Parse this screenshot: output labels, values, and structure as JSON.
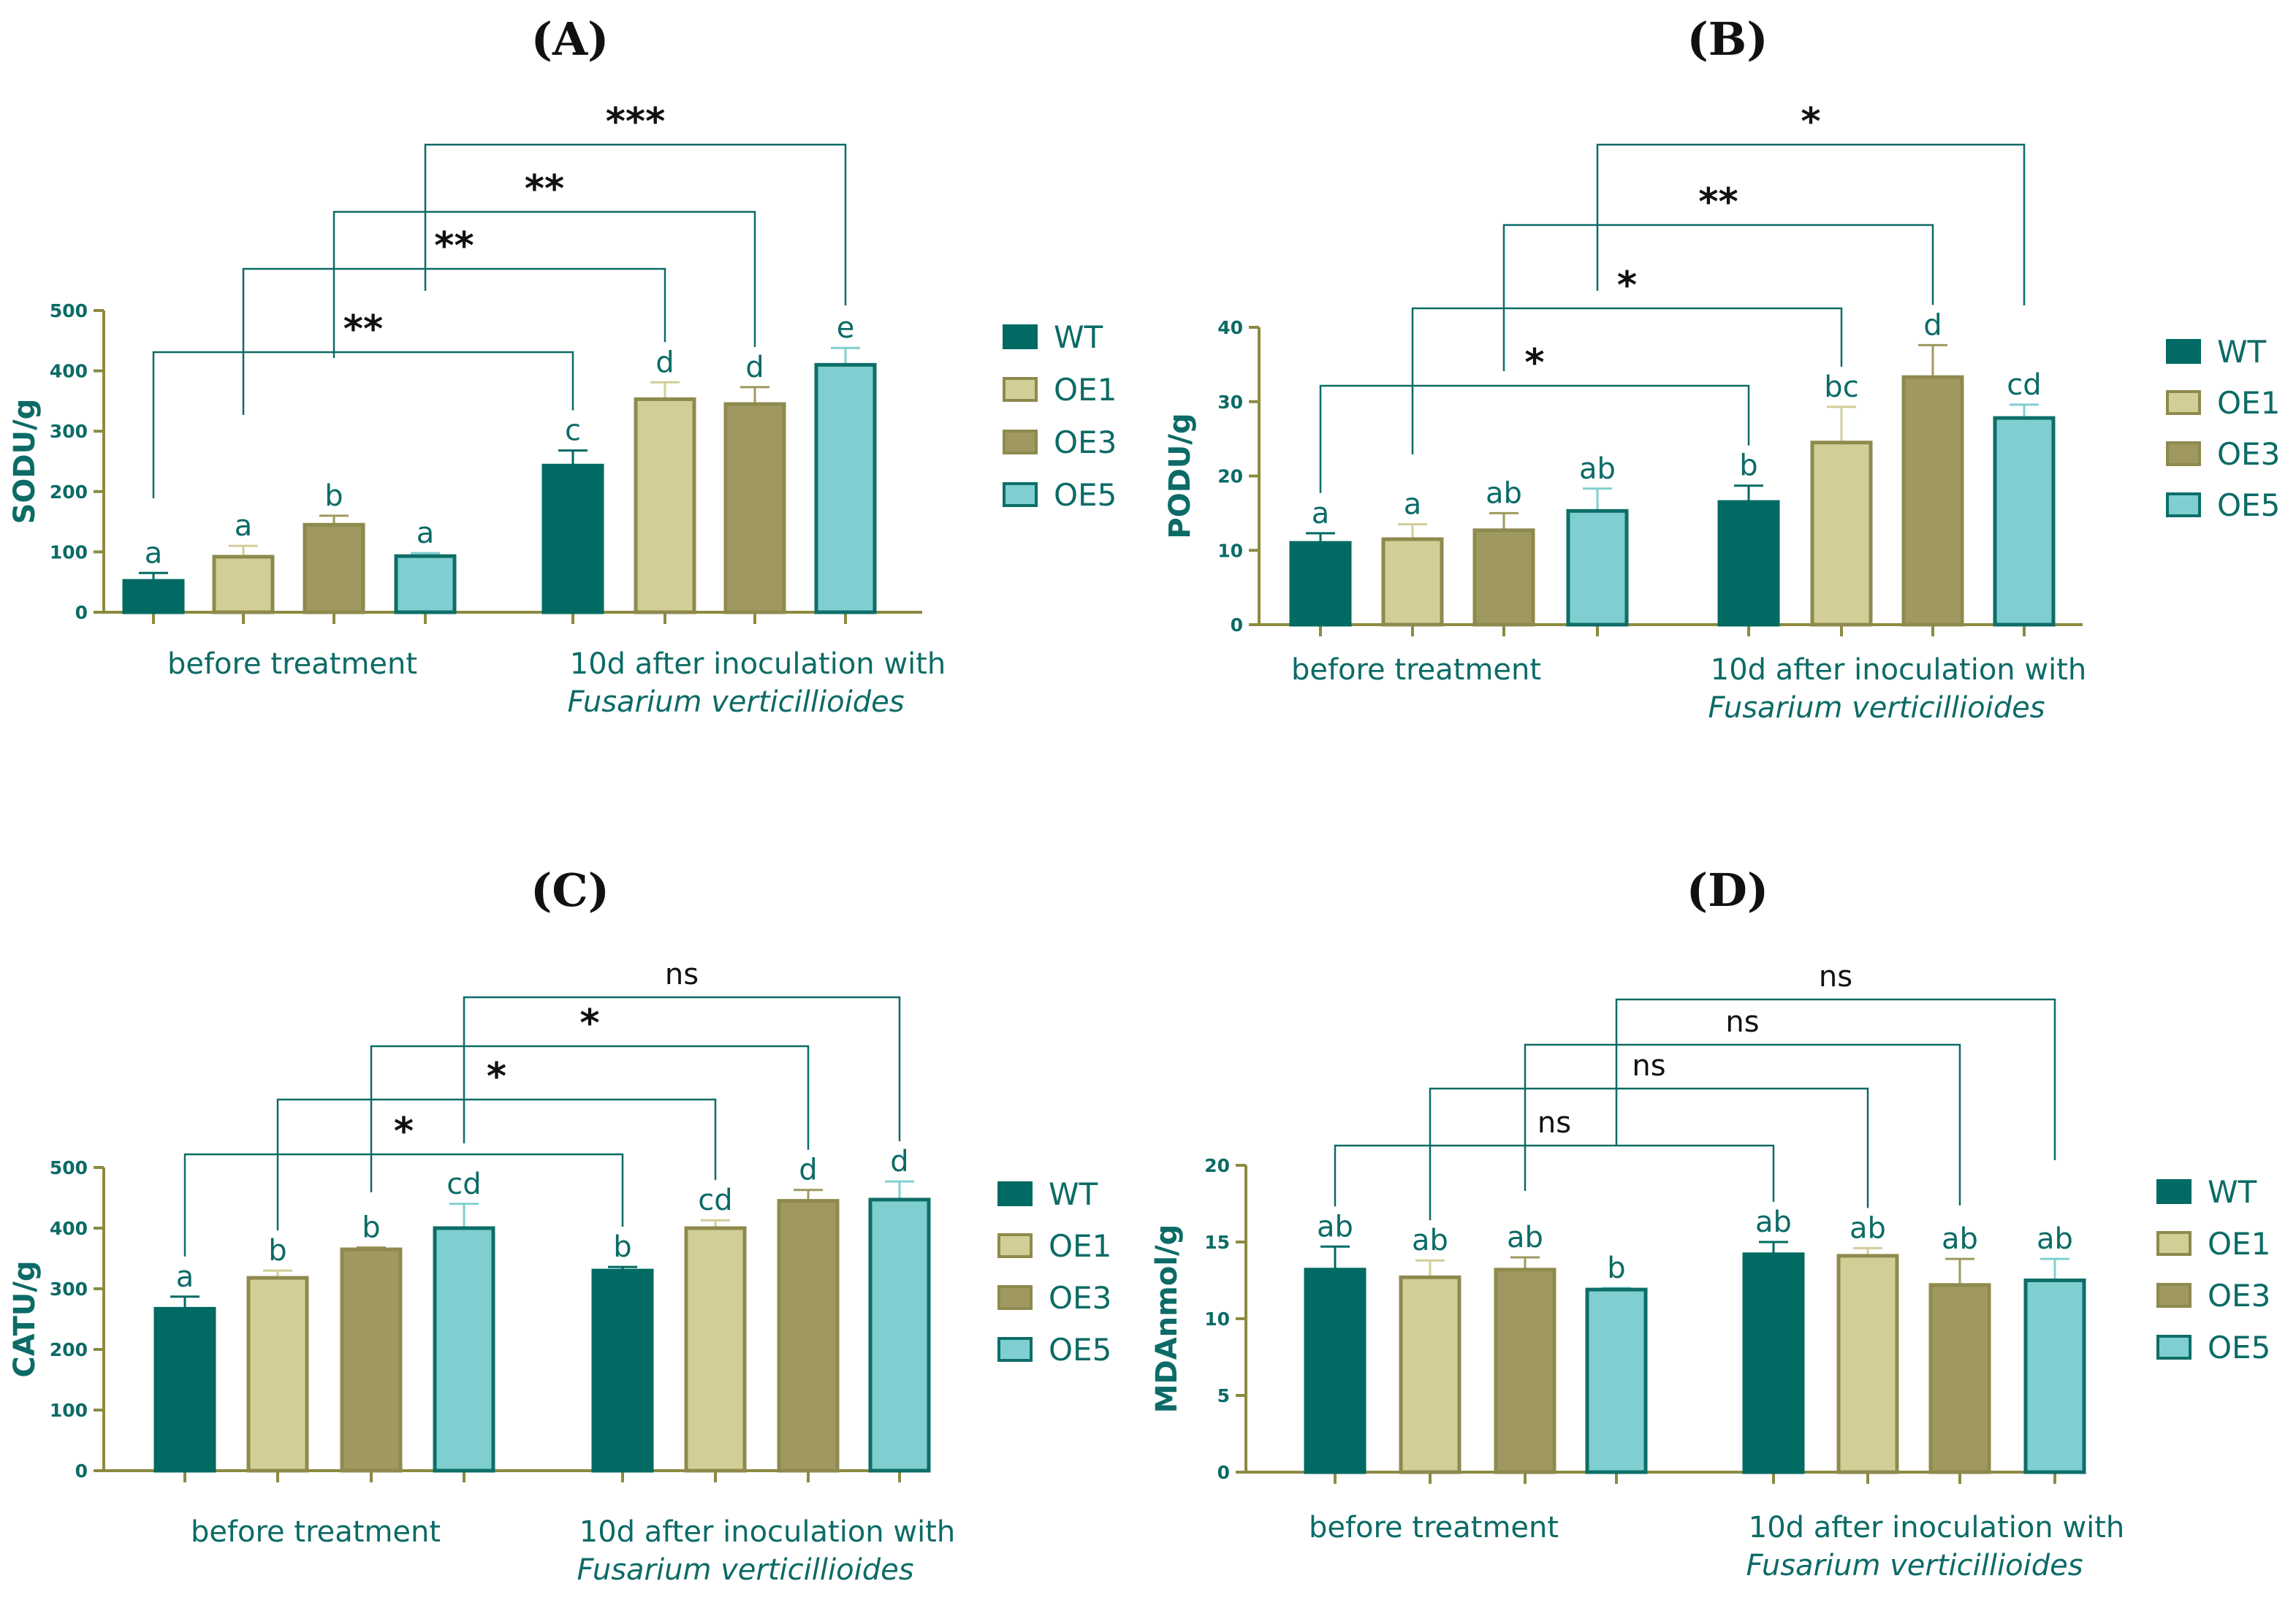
{
  "colors": {
    "WT": "#006a63",
    "OE1": "#d1ce97",
    "OE3": "#9f9860",
    "OE5": "#80cfd0",
    "axis": "#8c8a40",
    "bracket": "#0c6b66",
    "text": "#0c6b66"
  },
  "legend": [
    "WT",
    "OE1",
    "OE3",
    "OE5"
  ],
  "chart_data": [
    {
      "type": "bar",
      "panel": "(A)",
      "ylabel": "SODU/g",
      "ylim": [
        0,
        500
      ],
      "yticks": [
        0,
        100,
        200,
        300,
        400,
        500
      ],
      "groups": [
        {
          "label": "before treatment",
          "label_italic": ""
        },
        {
          "label": "10d after inoculation with",
          "label_italic": "Fusarium verticillioides"
        }
      ],
      "series": [
        {
          "name": "WT",
          "values": [
            52,
            243
          ],
          "errors": [
            13,
            25
          ],
          "letters": [
            "a",
            "c"
          ]
        },
        {
          "name": "OE1",
          "values": [
            92,
            353
          ],
          "errors": [
            18,
            28
          ],
          "letters": [
            "a",
            "d"
          ]
        },
        {
          "name": "OE3",
          "values": [
            145,
            345
          ],
          "errors": [
            15,
            28
          ],
          "letters": [
            "b",
            "d"
          ]
        },
        {
          "name": "OE5",
          "values": [
            93,
            410
          ],
          "errors": [
            5,
            28
          ],
          "letters": [
            "a",
            "e"
          ]
        }
      ],
      "comparisons": [
        {
          "series": "WT",
          "label": "**",
          "level": 0
        },
        {
          "series": "OE1",
          "label": "**",
          "level": 1
        },
        {
          "series": "OE3",
          "label": "**",
          "level": 2
        },
        {
          "series": "OE5",
          "label": "***",
          "level": 3
        }
      ]
    },
    {
      "type": "bar",
      "panel": "(B)",
      "ylabel": "PODU/g",
      "ylim": [
        0,
        40
      ],
      "yticks": [
        0,
        10,
        20,
        30,
        40
      ],
      "groups": [
        {
          "label": "before treatment",
          "label_italic": ""
        },
        {
          "label": "10d after inoculation with",
          "label_italic": "Fusarium verticillioides"
        }
      ],
      "series": [
        {
          "name": "WT",
          "values": [
            11,
            16.5
          ],
          "errors": [
            1.3,
            2.2
          ],
          "letters": [
            "a",
            "b"
          ]
        },
        {
          "name": "OE1",
          "values": [
            11.5,
            24.5
          ],
          "errors": [
            2,
            4.8
          ],
          "letters": [
            "a",
            "bc"
          ]
        },
        {
          "name": "OE3",
          "values": [
            12.7,
            33.3
          ],
          "errors": [
            2.3,
            4.3
          ],
          "letters": [
            "ab",
            "d"
          ]
        },
        {
          "name": "OE5",
          "values": [
            15.3,
            27.8
          ],
          "errors": [
            3,
            1.8
          ],
          "letters": [
            "ab",
            "cd"
          ]
        }
      ],
      "comparisons": [
        {
          "series": "WT",
          "label": "*",
          "level": 0
        },
        {
          "series": "OE1",
          "label": "*",
          "level": 1
        },
        {
          "series": "OE3",
          "label": "**",
          "level": 2
        },
        {
          "series": "OE5",
          "label": "*",
          "level": 3
        }
      ]
    },
    {
      "type": "bar",
      "panel": "(C)",
      "ylabel": "CATU/g",
      "ylim": [
        0,
        500
      ],
      "yticks": [
        0,
        100,
        200,
        300,
        400,
        500
      ],
      "groups": [
        {
          "label": "before treatment",
          "label_italic": ""
        },
        {
          "label": "10d after inoculation with",
          "label_italic": "Fusarium verticillioides"
        }
      ],
      "series": [
        {
          "name": "WT",
          "values": [
            267,
            330
          ],
          "errors": [
            20,
            6
          ],
          "letters": [
            "a",
            "b"
          ]
        },
        {
          "name": "OE1",
          "values": [
            318,
            400
          ],
          "errors": [
            12,
            13
          ],
          "letters": [
            "b",
            "cd"
          ]
        },
        {
          "name": "OE3",
          "values": [
            365,
            445
          ],
          "errors": [
            3,
            18
          ],
          "letters": [
            "b",
            "d"
          ]
        },
        {
          "name": "OE5",
          "values": [
            400,
            447
          ],
          "errors": [
            40,
            30
          ],
          "letters": [
            "cd",
            "d"
          ]
        }
      ],
      "comparisons": [
        {
          "series": "WT",
          "label": "*",
          "level": 0
        },
        {
          "series": "OE1",
          "label": "*",
          "level": 1
        },
        {
          "series": "OE3",
          "label": "*",
          "level": 2
        },
        {
          "series": "OE5",
          "label": "ns",
          "level": 3
        }
      ]
    },
    {
      "type": "bar",
      "panel": "(D)",
      "ylabel": "MDAnmol/g",
      "ylim": [
        0,
        20
      ],
      "yticks": [
        0,
        5,
        10,
        15,
        20
      ],
      "groups": [
        {
          "label": "before treatment",
          "label_italic": ""
        },
        {
          "label": "10d after inoculation  with",
          "label_italic": "Fusarium verticillioides"
        }
      ],
      "series": [
        {
          "name": "WT",
          "values": [
            13.2,
            14.2
          ],
          "errors": [
            1.5,
            0.8
          ],
          "letters": [
            "ab",
            "ab"
          ]
        },
        {
          "name": "OE1",
          "values": [
            12.7,
            14.1
          ],
          "errors": [
            1.1,
            0.5
          ],
          "letters": [
            "ab",
            "ab"
          ]
        },
        {
          "name": "OE3",
          "values": [
            13.2,
            12.2
          ],
          "errors": [
            0.8,
            1.7
          ],
          "letters": [
            "ab",
            "ab"
          ]
        },
        {
          "name": "OE5",
          "values": [
            11.9,
            12.5
          ],
          "errors": [
            0.1,
            1.4
          ],
          "letters": [
            "b",
            "ab"
          ]
        }
      ],
      "comparisons": [
        {
          "series": "WT",
          "label": "ns",
          "level": 0
        },
        {
          "series": "OE1",
          "label": "ns",
          "level": 1
        },
        {
          "series": "OE3",
          "label": "ns",
          "level": 2
        },
        {
          "series": "OE5",
          "label": "ns",
          "level": 3
        }
      ]
    }
  ]
}
